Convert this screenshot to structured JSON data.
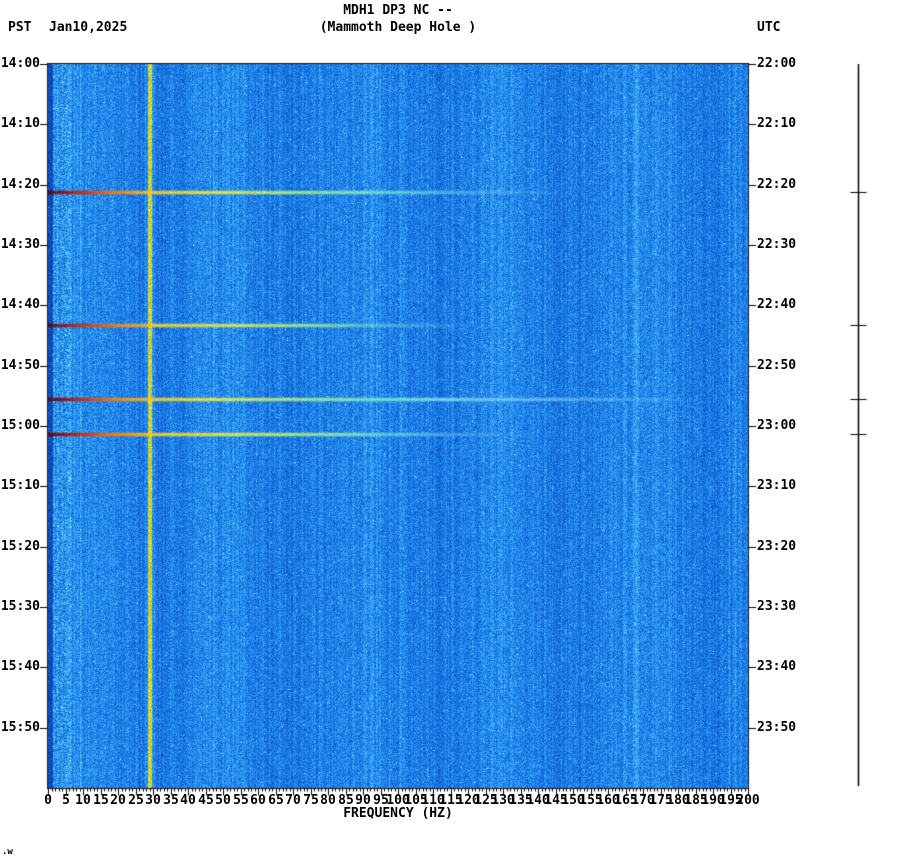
{
  "header": {
    "title": "MDH1 DP3 NC --",
    "subtitle": "(Mammoth Deep Hole )",
    "tz_left": "PST",
    "date": "Jan10,2025",
    "tz_right": "UTC"
  },
  "footer": {
    "corner_mark": ".w"
  },
  "chart_data": {
    "type": "heatmap",
    "title": "MDH1 DP3 NC -- (Mammoth Deep Hole )",
    "xlabel": "FREQUENCY (HZ)",
    "x_range_hz": [
      0,
      200
    ],
    "x_tick_step_hz": 5,
    "x_ticks": [
      0,
      5,
      10,
      15,
      20,
      25,
      30,
      35,
      40,
      45,
      50,
      55,
      60,
      65,
      70,
      75,
      80,
      85,
      90,
      95,
      100,
      105,
      110,
      115,
      120,
      125,
      130,
      135,
      140,
      145,
      150,
      155,
      160,
      165,
      170,
      175,
      180,
      185,
      190,
      195,
      200
    ],
    "duration_minutes": 120,
    "y_axis_left": {
      "label": "PST",
      "ticks": [
        "14:00",
        "14:10",
        "14:20",
        "14:30",
        "14:40",
        "14:50",
        "15:00",
        "15:10",
        "15:20",
        "15:30",
        "15:40",
        "15:50"
      ]
    },
    "y_axis_right": {
      "label": "UTC",
      "ticks": [
        "22:00",
        "22:10",
        "22:20",
        "22:30",
        "22:40",
        "22:50",
        "23:00",
        "23:10",
        "23:20",
        "23:30",
        "23:40",
        "23:50"
      ]
    },
    "background_noise": "blue speckle spectrogram noise",
    "calibration_line_hz": 29,
    "events": [
      {
        "time_pst": "14:21",
        "time_utc": "22:21",
        "minutes_from_start": 21.2,
        "extent_hz": 150,
        "strength": 1.0
      },
      {
        "time_pst": "14:43",
        "time_utc": "22:43",
        "minutes_from_start": 43.2,
        "extent_hz": 125,
        "strength": 0.95
      },
      {
        "time_pst": "14:56",
        "time_utc": "22:56",
        "minutes_from_start": 55.5,
        "extent_hz": 190,
        "strength": 1.0
      },
      {
        "time_pst": "15:01",
        "time_utc": "23:01",
        "minutes_from_start": 61.3,
        "extent_hz": 140,
        "strength": 1.0
      }
    ],
    "colors": {
      "bg_page": "#ffffff",
      "noise_low": "#0a3eb4",
      "noise_mid": "#1c84ee",
      "noise_high": "#96eef2",
      "line_yellow": "#c8d43e",
      "event_hot": "#8b0000",
      "event_warm": "#ff7800",
      "event_mid": "#ffd21e",
      "event_cool": "#87d2f0",
      "axis": "#000000"
    }
  }
}
